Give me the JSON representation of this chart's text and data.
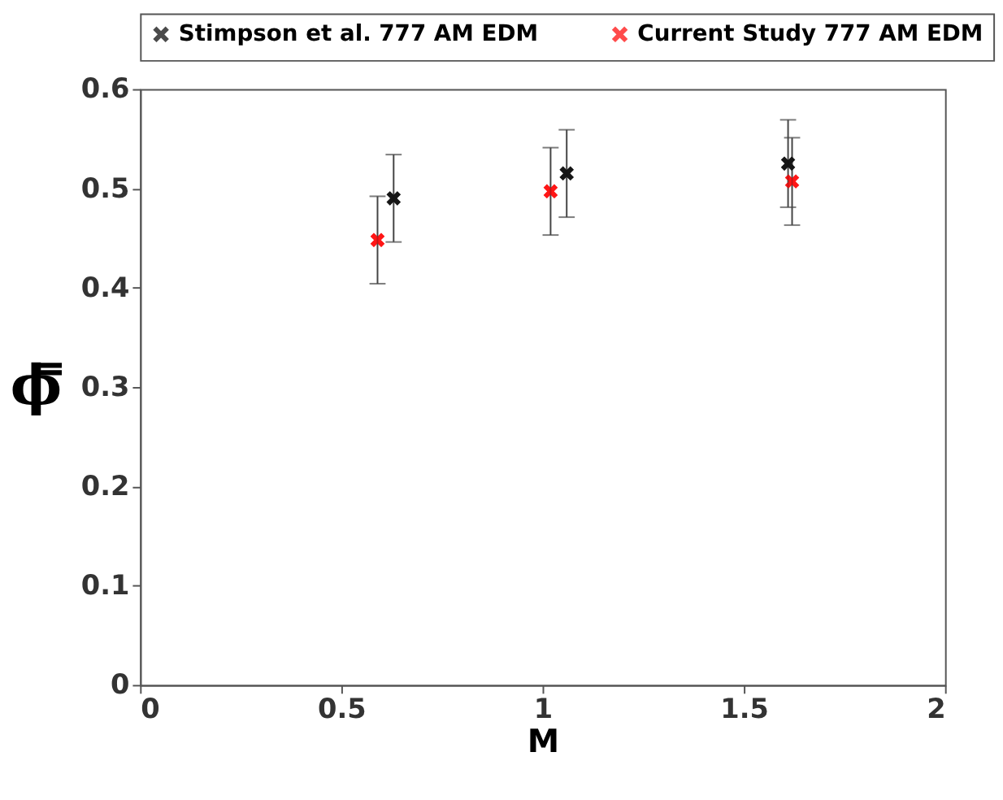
{
  "chart_data": {
    "type": "scatter",
    "xlabel": "M",
    "ylabel": "ϕ̿",
    "series": [
      {
        "name": "Stimpson et al. 777 AM EDM",
        "color": "#000000",
        "x": [
          0.63,
          1.06,
          1.61
        ],
        "values": [
          0.49,
          0.515,
          0.525
        ],
        "errors": [
          0.044,
          0.044,
          0.044
        ]
      },
      {
        "name": "Current Study 777 AM EDM",
        "color": "#ff0000",
        "x": [
          0.59,
          1.02,
          1.62
        ],
        "values": [
          0.448,
          0.497,
          0.507
        ],
        "errors": [
          0.044,
          0.044,
          0.044
        ]
      }
    ],
    "xlim": [
      0,
      2
    ],
    "xticks": [
      0,
      0.5,
      1,
      1.5,
      2
    ],
    "ylim": [
      0,
      0.6
    ],
    "yticks": [
      0,
      0.1,
      0.2,
      0.3,
      0.4,
      0.5,
      0.6
    ],
    "grid": false,
    "legend": "top",
    "marker": "cross"
  }
}
